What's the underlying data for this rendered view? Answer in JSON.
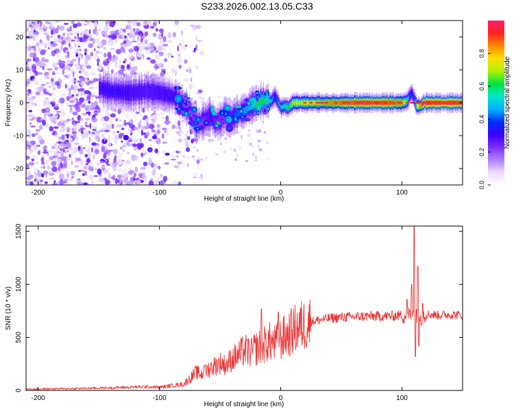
{
  "page": {
    "title": "S233.2026.002.13.05.C33"
  },
  "colors": {
    "line": "#ee3333",
    "scatter": "#8a4dff",
    "colormap": [
      "#ffffff",
      "#e8dcff",
      "#b07dff",
      "#7a2bff",
      "#3b00ff",
      "#0030ff",
      "#00b0ff",
      "#00e6c8",
      "#00e640",
      "#b0f000",
      "#ffe000",
      "#ff8a00",
      "#ff2020",
      "#ff1e6e"
    ]
  },
  "chart_data": [
    {
      "type": "heatmap",
      "title": "",
      "xlabel": "Height of straight line (km)",
      "ylabel": "Frequency (Hz)",
      "xlim": [
        -210,
        150
      ],
      "ylim": [
        -25,
        25
      ],
      "xticks": [
        -200,
        -100,
        0,
        100
      ],
      "xtick_labels": [
        "-200",
        "-100",
        "0",
        "100"
      ],
      "yticks": [
        -20,
        -10,
        0,
        10,
        20
      ],
      "ytick_labels": [
        "-20",
        "-10",
        "0",
        "10",
        "20"
      ],
      "ridge": {
        "x": [
          -150,
          -140,
          -125,
          -110,
          -100,
          -90,
          -86,
          -82,
          -78,
          -74,
          -70,
          -66,
          -62,
          -58,
          -54,
          -50,
          -46,
          -42,
          -38,
          -34,
          -30,
          -25,
          -20,
          -16,
          -12,
          -8,
          -5,
          -2,
          0,
          3,
          6,
          10,
          20,
          40,
          60,
          80,
          90,
          100,
          104,
          106,
          108,
          110,
          112,
          115,
          118,
          125,
          135,
          150
        ],
        "y": [
          4.5,
          3.5,
          3,
          3.5,
          3,
          2,
          1.5,
          0,
          -1.5,
          -3.5,
          -6.5,
          -6,
          -5,
          -4,
          -6,
          -5.5,
          -3.5,
          -5,
          -4,
          -3,
          -2.5,
          -1,
          0,
          0.5,
          0.5,
          0.5,
          2,
          0,
          -1.5,
          -1,
          -1.5,
          0,
          0,
          0,
          0,
          0,
          0,
          0,
          0.5,
          2,
          3,
          1,
          -1,
          -1,
          0,
          0,
          0,
          0
        ],
        "amplitude": [
          0.3,
          0.32,
          0.3,
          0.28,
          0.3,
          0.3,
          0.32,
          0.35,
          0.3,
          0.25,
          0.2,
          0.22,
          0.25,
          0.3,
          0.25,
          0.2,
          0.25,
          0.35,
          0.4,
          0.42,
          0.45,
          0.48,
          0.6,
          0.62,
          0.58,
          0.5,
          0.35,
          0.45,
          0.5,
          0.55,
          0.6,
          0.7,
          0.75,
          0.85,
          0.9,
          0.92,
          0.9,
          0.85,
          0.6,
          0.4,
          0.35,
          0.4,
          0.7,
          0.85,
          0.95,
          0.93,
          0.95,
          0.92
        ]
      },
      "noise_region": {
        "xmin": -210,
        "xmax": -90,
        "density": "high"
      },
      "colorbar": {
        "label": "Normalized spectral amplitude",
        "range": [
          0,
          1
        ],
        "ticks": [
          0,
          0.2,
          0.4,
          0.6,
          0.8
        ],
        "tick_labels": [
          "0.0",
          "0.2",
          "0.4",
          "0.6",
          "0.8"
        ]
      }
    },
    {
      "type": "line",
      "title": "",
      "xlabel": "Height of straight line (km)",
      "ylabel": "SNR (10 * v/v)",
      "xlim": [
        -210,
        150
      ],
      "ylim": [
        0,
        1550
      ],
      "xticks": [
        -200,
        -100,
        0,
        100
      ],
      "xtick_labels": [
        "-200",
        "-100",
        "0",
        "100"
      ],
      "yticks": [
        0,
        500,
        1000,
        1500
      ],
      "ytick_labels": [
        "0",
        "500",
        "1000",
        "1500"
      ],
      "series": [
        {
          "name": "SNR",
          "x": [
            -210,
            -190,
            -170,
            -150,
            -130,
            -110,
            -100,
            -90,
            -80,
            -75,
            -70,
            -65,
            -60,
            -55,
            -50,
            -45,
            -40,
            -35,
            -30,
            -25,
            -20,
            -15,
            -10,
            -5,
            0,
            5,
            10,
            15,
            20,
            25,
            30,
            35,
            40,
            50,
            60,
            70,
            80,
            90,
            95,
            100,
            105,
            110,
            115,
            120,
            130,
            140,
            150
          ],
          "y": [
            12,
            15,
            18,
            22,
            28,
            35,
            30,
            45,
            60,
            110,
            170,
            150,
            200,
            230,
            260,
            240,
            300,
            330,
            380,
            360,
            400,
            420,
            460,
            440,
            480,
            520,
            560,
            600,
            620,
            650,
            660,
            670,
            680,
            690,
            695,
            700,
            700,
            700,
            705,
            710,
            700,
            760,
            690,
            720,
            710,
            715,
            710
          ],
          "spikes": [
            {
              "x": -63,
              "y": 230
            },
            {
              "x": -24,
              "y": 490
            },
            {
              "x": -16,
              "y": 770
            },
            {
              "x": -2,
              "y": 740
            },
            {
              "x": 108,
              "y": 1000
            },
            {
              "x": 110,
              "y": 1560
            },
            {
              "x": 111,
              "y": 320
            },
            {
              "x": 113,
              "y": 1170
            },
            {
              "x": 114,
              "y": 420
            },
            {
              "x": 117,
              "y": 820
            },
            {
              "x": 104,
              "y": 860
            }
          ]
        }
      ]
    }
  ]
}
